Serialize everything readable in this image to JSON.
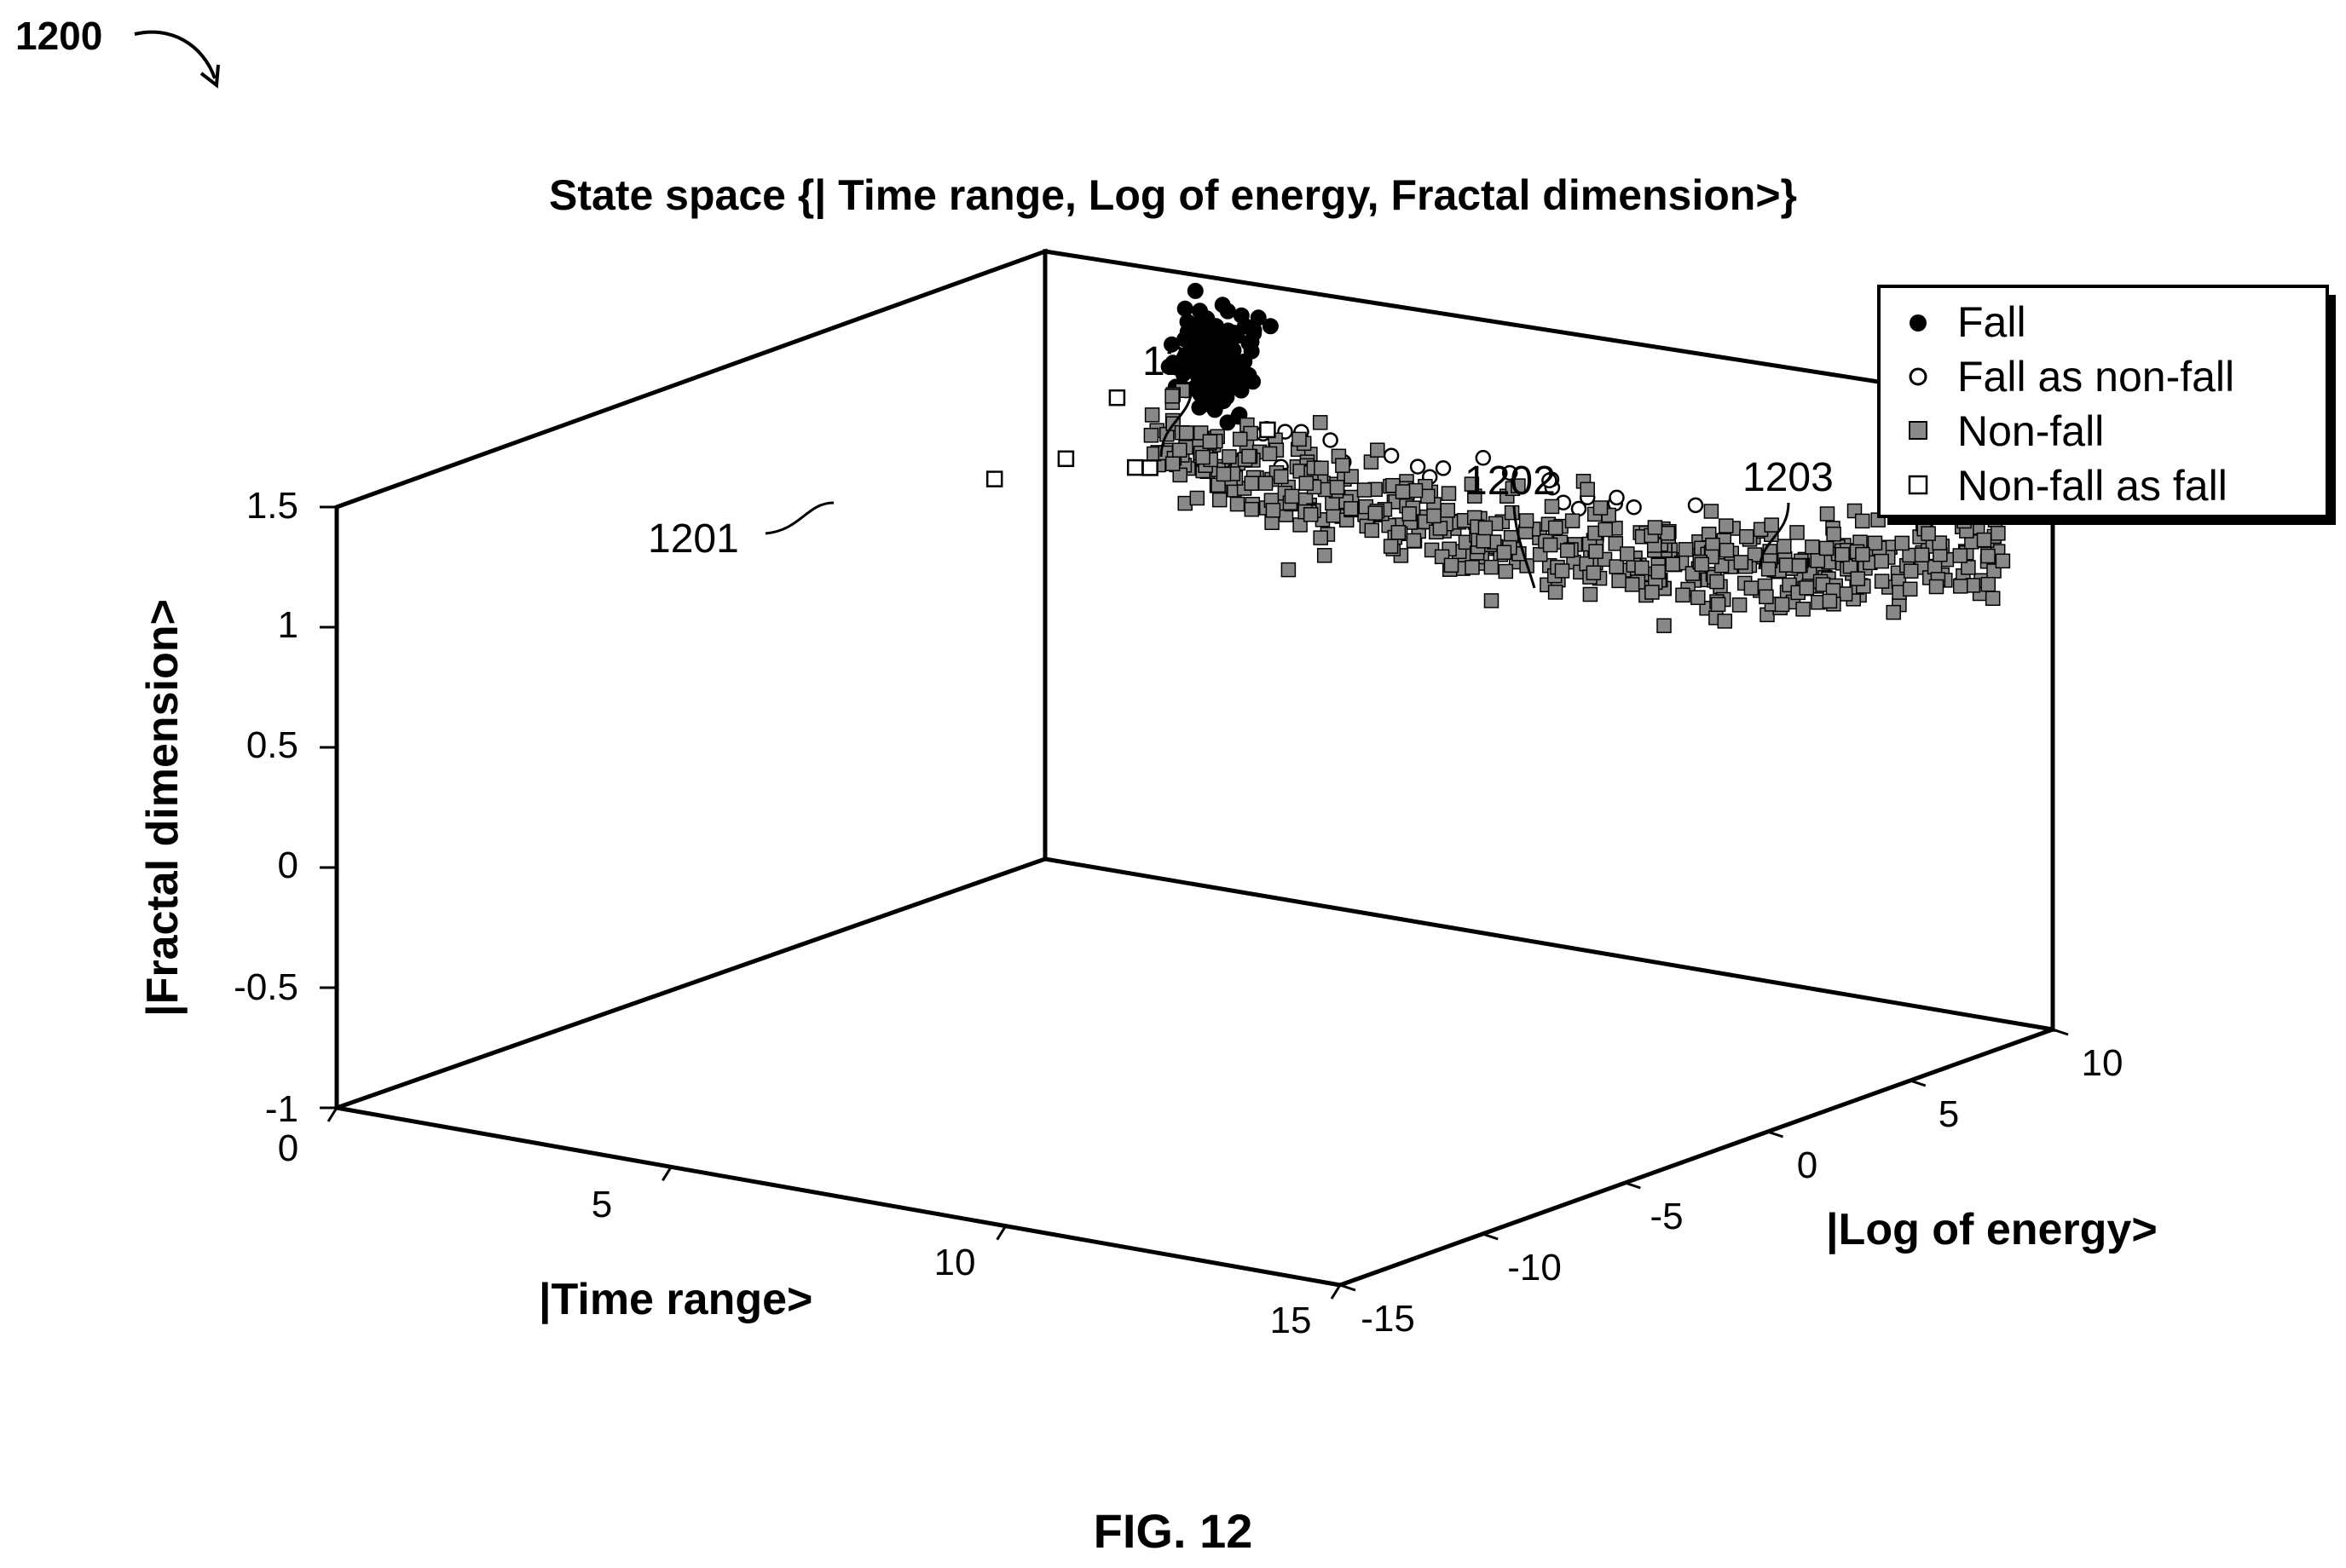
{
  "figure": {
    "ref": "1200",
    "caption": "FIG. 12"
  },
  "chart_data": {
    "type": "scatter",
    "projection": "3d",
    "title": "State space {| Time range, Log of energy, Fractal dimension>}",
    "xlabel": "|Time range>",
    "ylabel": "|Log of energy>",
    "zlabel": "|Fractal dimension>",
    "xlim": [
      0,
      15
    ],
    "ylim": [
      -15,
      10
    ],
    "zlim": [
      -1,
      1.5
    ],
    "x_ticks": [
      "0",
      "5",
      "10",
      "15"
    ],
    "y_ticks": [
      "-15",
      "-10",
      "-5",
      "0",
      "5",
      "10"
    ],
    "z_ticks": [
      "-1",
      "-0.5",
      "0",
      "0.5",
      "1",
      "1.5"
    ],
    "grid": false,
    "legend_position": "top-right",
    "legend": [
      {
        "label": "Fall",
        "marker": "filled-circle"
      },
      {
        "label": "Fall as non-fall",
        "marker": "open-circle"
      },
      {
        "label": "Non-fall",
        "marker": "gray-square"
      },
      {
        "label": "Non-fall as fall",
        "marker": "open-square"
      }
    ],
    "annotations": [
      {
        "label": "1201",
        "target": "Fall"
      },
      {
        "label": "1202",
        "target": "Fall as non-fall"
      },
      {
        "label": "1203",
        "target": "Non-fall"
      },
      {
        "label": "1204",
        "target": "Non-fall as fall"
      }
    ],
    "series": [
      {
        "name": "Fall",
        "count_estimate": 190,
        "x_range": [
          0,
          1
        ],
        "y_range": [
          -13,
          -7
        ],
        "z_range": [
          0.4,
          1.5
        ],
        "z_center": 1.2
      },
      {
        "name": "Fall as non-fall",
        "count_estimate": 25,
        "x_range": [
          0,
          1
        ],
        "y_range": [
          -10,
          2
        ],
        "z_range": [
          0.5,
          1.1
        ],
        "z_center": 0.9
      },
      {
        "name": "Non-fall",
        "count_estimate": 560,
        "x_range": [
          0,
          3
        ],
        "y_range": [
          -12,
          9
        ],
        "z_range": [
          -0.5,
          1.3
        ],
        "z_center": 0.6
      },
      {
        "name": "Non-fall as fall",
        "count_estimate": 6,
        "x_range": [
          0,
          6
        ],
        "y_range": [
          -11,
          -7
        ],
        "z_range": [
          0.8,
          1.3
        ],
        "z_center": 1.1
      }
    ]
  }
}
